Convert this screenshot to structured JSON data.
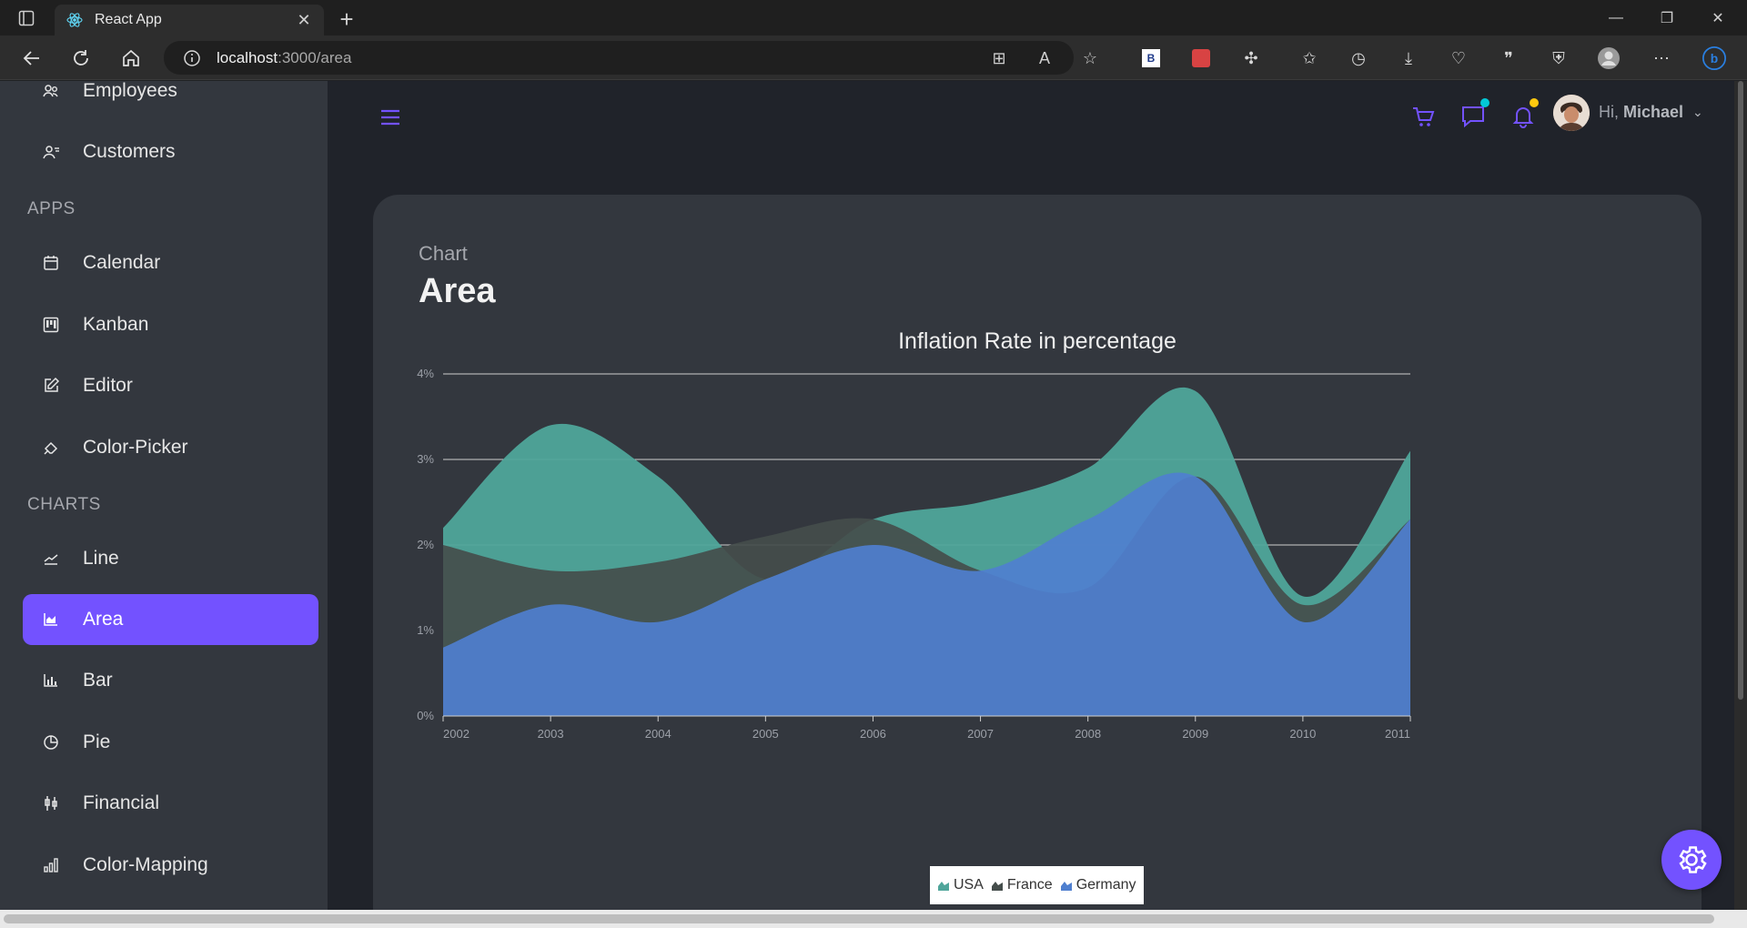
{
  "browser": {
    "tab_title": "React App",
    "url_host": "localhost",
    "url_path": ":3000/area"
  },
  "sidebar": {
    "items_top": [
      {
        "label": "Employees",
        "icon": "employees-icon"
      },
      {
        "label": "Customers",
        "icon": "customers-icon"
      }
    ],
    "section_apps": "APPS",
    "apps": [
      {
        "label": "Calendar",
        "icon": "calendar-icon"
      },
      {
        "label": "Kanban",
        "icon": "kanban-icon"
      },
      {
        "label": "Editor",
        "icon": "editor-icon"
      },
      {
        "label": "Color-Picker",
        "icon": "color-picker-icon"
      }
    ],
    "section_charts": "CHARTS",
    "charts": [
      {
        "label": "Line",
        "icon": "line-chart-icon"
      },
      {
        "label": "Area",
        "icon": "area-chart-icon",
        "active": true
      },
      {
        "label": "Bar",
        "icon": "bar-chart-icon"
      },
      {
        "label": "Pie",
        "icon": "pie-chart-icon"
      },
      {
        "label": "Financial",
        "icon": "financial-icon"
      },
      {
        "label": "Color-Mapping",
        "icon": "color-mapping-icon"
      }
    ]
  },
  "header": {
    "greeting": "Hi,",
    "user_name": "Michael"
  },
  "card": {
    "subtitle": "Chart",
    "title": "Area"
  },
  "colors": {
    "accent": "#7352ff",
    "usa": "#4fa59a",
    "france": "#444d4b",
    "germany": "#4f7fcf",
    "cart_dot": "#03c9d7",
    "bell_dot": "#fec90f"
  },
  "chart_data": {
    "type": "area",
    "title": "Inflation Rate in percentage",
    "x": [
      "2002",
      "2003",
      "2004",
      "2005",
      "2006",
      "2007",
      "2008",
      "2009",
      "2010",
      "2011"
    ],
    "ylim": [
      0,
      4
    ],
    "y_ticks": [
      "0%",
      "1%",
      "2%",
      "3%",
      "4%"
    ],
    "grid": true,
    "legend_position": "bottom",
    "series": [
      {
        "name": "USA",
        "values": [
          2.2,
          3.4,
          2.8,
          1.6,
          2.3,
          2.5,
          2.9,
          3.8,
          1.4,
          3.1
        ]
      },
      {
        "name": "France",
        "values": [
          2.0,
          1.7,
          1.8,
          2.1,
          2.3,
          1.7,
          1.5,
          2.8,
          1.3,
          2.3
        ]
      },
      {
        "name": "Germany",
        "values": [
          0.8,
          1.3,
          1.1,
          1.6,
          2.0,
          1.7,
          2.3,
          2.8,
          1.1,
          2.3
        ]
      }
    ]
  }
}
